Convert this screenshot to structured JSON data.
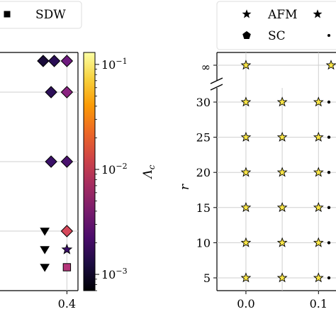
{
  "chart_data": [
    {
      "type": "scatter",
      "panel": "left",
      "legend": {
        "placement": "top",
        "entries": [
          {
            "marker": "square",
            "label": "SDW"
          }
        ]
      },
      "xticks": [
        {
          "value": 0.4,
          "label": "0.4"
        }
      ],
      "xlim": [
        -0.05,
        0.47
      ],
      "y_rows": [
        1,
        2,
        3,
        4,
        5,
        6
      ],
      "grid": true,
      "points": [
        {
          "x": 0.25,
          "row": 6,
          "marker": "diamond",
          "color": "#1a0b3a"
        },
        {
          "x": 0.32,
          "row": 6,
          "marker": "diamond",
          "color": "#2a0e55"
        },
        {
          "x": 0.4,
          "row": 6,
          "marker": "diamond",
          "color": "#6e1b7e"
        },
        {
          "x": 0.4,
          "row": 5,
          "marker": "diamond",
          "color": "#8a2480"
        },
        {
          "x": 0.3,
          "row": 5,
          "marker": "diamond",
          "color": "#2c0f58"
        },
        {
          "x": 0.3,
          "row": 4,
          "marker": "diamond",
          "color": "#3a1068"
        },
        {
          "x": 0.4,
          "row": 4,
          "marker": "diamond",
          "color": "#4a126e"
        },
        {
          "x": 0.26,
          "row": 3,
          "marker": "triangle",
          "color": "#000000"
        },
        {
          "x": 0.4,
          "row": 3,
          "marker": "diamond",
          "color": "#d5485a"
        },
        {
          "x": 0.26,
          "row": 2,
          "marker": "triangle",
          "color": "#000000"
        },
        {
          "x": 0.4,
          "row": 2,
          "marker": "star",
          "color": "#3b0f6a"
        },
        {
          "x": 0.26,
          "row": 1,
          "marker": "triangle",
          "color": "#000000"
        },
        {
          "x": 0.4,
          "row": 1,
          "marker": "square",
          "color": "#b5367a"
        }
      ],
      "colorbar": {
        "label": "Λc",
        "scale": "log",
        "range": [
          0.0007,
          0.13
        ],
        "ticks": [
          {
            "value": 0.001,
            "label": "10−3"
          },
          {
            "value": 0.01,
            "label": "10−2"
          },
          {
            "value": 0.1,
            "label": "10−1"
          }
        ],
        "colormap": [
          "#000004",
          "#1b0c41",
          "#4a0c6b",
          "#781c6d",
          "#a52c60",
          "#cf4446",
          "#ed6925",
          "#fb9b06",
          "#f7d13d",
          "#fcffa4"
        ]
      }
    },
    {
      "type": "scatter",
      "panel": "right",
      "ylabel": "r",
      "legend": {
        "placement": "top",
        "entries": [
          {
            "marker": "star",
            "label": "AFM"
          },
          {
            "marker": "pentagon",
            "label": "SC"
          },
          {
            "marker": "star",
            "label": ""
          },
          {
            "marker": "dot",
            "label": ""
          }
        ]
      },
      "xticks": [
        {
          "value": 0.0,
          "label": "0.0"
        },
        {
          "value": 0.1,
          "label": "0.1"
        }
      ],
      "yticks": [
        {
          "value": 5,
          "label": "5"
        },
        {
          "value": 10,
          "label": "10"
        },
        {
          "value": 15,
          "label": "15"
        },
        {
          "value": 20,
          "label": "20"
        },
        {
          "value": 25,
          "label": "25"
        },
        {
          "value": 30,
          "label": "30"
        },
        {
          "value": "inf",
          "label": "∞"
        }
      ],
      "xlim": [
        -0.04,
        0.13
      ],
      "grid": true,
      "star_color": "#f9e547",
      "star_rows": [
        5,
        10,
        15,
        20,
        25,
        30
      ],
      "star_x": [
        0.0,
        0.05,
        0.1
      ],
      "inf_star_x": [
        0.0,
        0.13
      ]
    }
  ]
}
